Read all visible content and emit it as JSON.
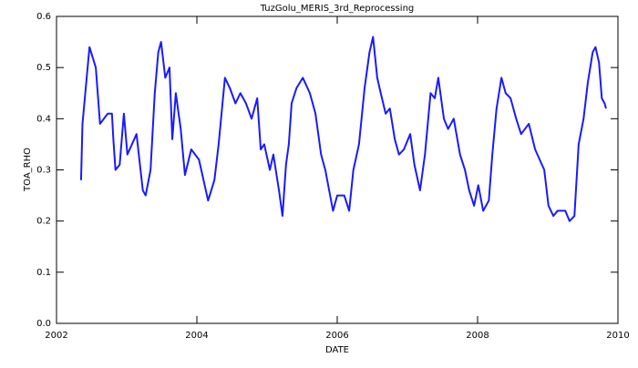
{
  "chart_data": {
    "type": "line",
    "title": "TuzGolu_MERIS_3rd_Reprocessing",
    "x_label": "DATE",
    "y_label": "TOA_RHO",
    "color": "#1a1aff",
    "x": [
      2002.35,
      2002.37,
      2002.47,
      2002.56,
      2002.62,
      2002.73,
      2002.79,
      2002.81,
      2002.84,
      2002.9,
      2002.96,
      2003.01,
      2003.14,
      2003.23,
      2003.27,
      2003.34,
      2003.4,
      2003.45,
      2003.49,
      2003.55,
      2003.61,
      2003.65,
      2003.7,
      2003.77,
      2003.83,
      2003.92,
      2004.03,
      2004.16,
      2004.25,
      2004.31,
      2004.4,
      2004.47,
      2004.55,
      2004.62,
      2004.7,
      2004.78,
      2004.86,
      2004.91,
      2004.96,
      2005.04,
      2005.09,
      2005.17,
      2005.22,
      2005.27,
      2005.31,
      2005.35,
      2005.42,
      2005.51,
      2005.61,
      2005.69,
      2005.77,
      2005.83,
      2005.94,
      2006.0,
      2006.1,
      2006.17,
      2006.23,
      2006.31,
      2006.39,
      2006.46,
      2006.51,
      2006.57,
      2006.62,
      2006.69,
      2006.75,
      2006.82,
      2006.88,
      2006.95,
      2007.04,
      2007.1,
      2007.18,
      2007.25,
      2007.33,
      2007.39,
      2007.44,
      2007.52,
      2007.58,
      2007.66,
      2007.75,
      2007.82,
      2007.88,
      2007.95,
      2008.01,
      2008.08,
      2008.16,
      2008.21,
      2008.27,
      2008.34,
      2008.4,
      2008.47,
      2008.55,
      2008.62,
      2008.73,
      2008.82,
      2008.95,
      2009.01,
      2009.08,
      2009.14,
      2009.25,
      2009.31,
      2009.38,
      2009.44,
      2009.51,
      2009.57,
      2009.64,
      2009.68,
      2009.73,
      2009.77,
      2009.81,
      2009.83
    ],
    "values": [
      0.28,
      0.39,
      0.54,
      0.5,
      0.39,
      0.41,
      0.41,
      0.36,
      0.3,
      0.31,
      0.41,
      0.33,
      0.37,
      0.26,
      0.25,
      0.3,
      0.45,
      0.53,
      0.55,
      0.48,
      0.5,
      0.36,
      0.45,
      0.38,
      0.29,
      0.34,
      0.32,
      0.24,
      0.28,
      0.35,
      0.48,
      0.46,
      0.43,
      0.45,
      0.43,
      0.4,
      0.44,
      0.34,
      0.35,
      0.3,
      0.33,
      0.26,
      0.21,
      0.31,
      0.35,
      0.43,
      0.46,
      0.48,
      0.45,
      0.41,
      0.33,
      0.3,
      0.22,
      0.25,
      0.25,
      0.22,
      0.3,
      0.35,
      0.46,
      0.53,
      0.56,
      0.48,
      0.45,
      0.41,
      0.42,
      0.36,
      0.33,
      0.34,
      0.37,
      0.31,
      0.26,
      0.33,
      0.45,
      0.44,
      0.48,
      0.4,
      0.38,
      0.4,
      0.33,
      0.3,
      0.26,
      0.23,
      0.27,
      0.22,
      0.24,
      0.33,
      0.42,
      0.48,
      0.45,
      0.44,
      0.4,
      0.37,
      0.39,
      0.34,
      0.3,
      0.23,
      0.21,
      0.22,
      0.22,
      0.2,
      0.21,
      0.35,
      0.4,
      0.47,
      0.53,
      0.54,
      0.51,
      0.44,
      0.43,
      0.42
    ],
    "xlim": [
      2002,
      2010
    ],
    "xticks": [
      2002,
      2004,
      2006,
      2008,
      2010
    ],
    "ylim": [
      0,
      0.6
    ],
    "yticks": [
      {
        "value": 0,
        "label": "0.0"
      },
      0.1,
      0.2,
      0.3,
      0.4,
      0.5,
      0.6
    ]
  }
}
